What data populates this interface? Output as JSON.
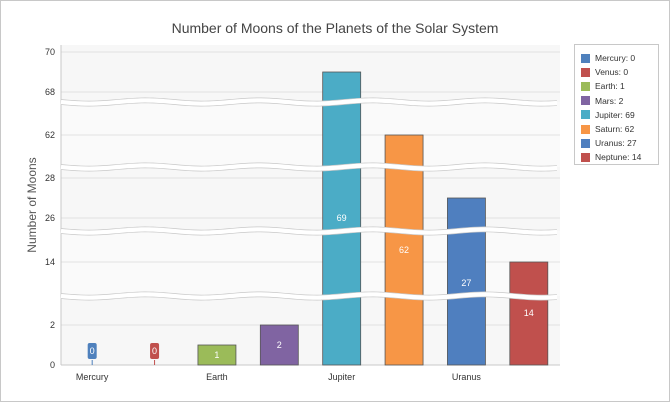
{
  "chart_data": {
    "type": "bar",
    "title": "Number of Moons of the Planets of the Solar System",
    "ylabel": "Number of Moons",
    "xlabel": "",
    "categories": [
      "Mercury",
      "Venus",
      "Earth",
      "Mars",
      "Jupiter",
      "Saturn",
      "Uranus",
      "Neptune"
    ],
    "values": [
      0,
      0,
      1,
      2,
      69,
      62,
      27,
      14
    ],
    "colors": [
      "#4f81bd",
      "#c0504d",
      "#9bbb59",
      "#8064a2",
      "#4bacc6",
      "#f79646",
      "#4f7fbf",
      "#c0504d"
    ],
    "x_tick_labels": [
      "Mercury",
      "",
      "Earth",
      "",
      "Jupiter",
      "",
      "Uranus",
      ""
    ],
    "y_ticks": [
      "0",
      "2",
      "14",
      "26",
      "28",
      "62",
      "68",
      "70"
    ],
    "scale_breaks": [
      [
        2,
        14
      ],
      [
        14,
        26
      ],
      [
        28,
        62
      ],
      [
        62,
        68
      ]
    ],
    "legend": [
      {
        "label": "Mercury: 0",
        "color": "#4f81bd"
      },
      {
        "label": "Venus: 0",
        "color": "#c0504d"
      },
      {
        "label": "Earth: 1",
        "color": "#9bbb59"
      },
      {
        "label": "Mars: 2",
        "color": "#8064a2"
      },
      {
        "label": "Jupiter: 69",
        "color": "#4bacc6"
      },
      {
        "label": "Saturn: 62",
        "color": "#f79646"
      },
      {
        "label": "Uranus: 27",
        "color": "#4f7fbf"
      },
      {
        "label": "Neptune: 14",
        "color": "#c0504d"
      }
    ],
    "legend_position": "top-right",
    "grid": true
  }
}
